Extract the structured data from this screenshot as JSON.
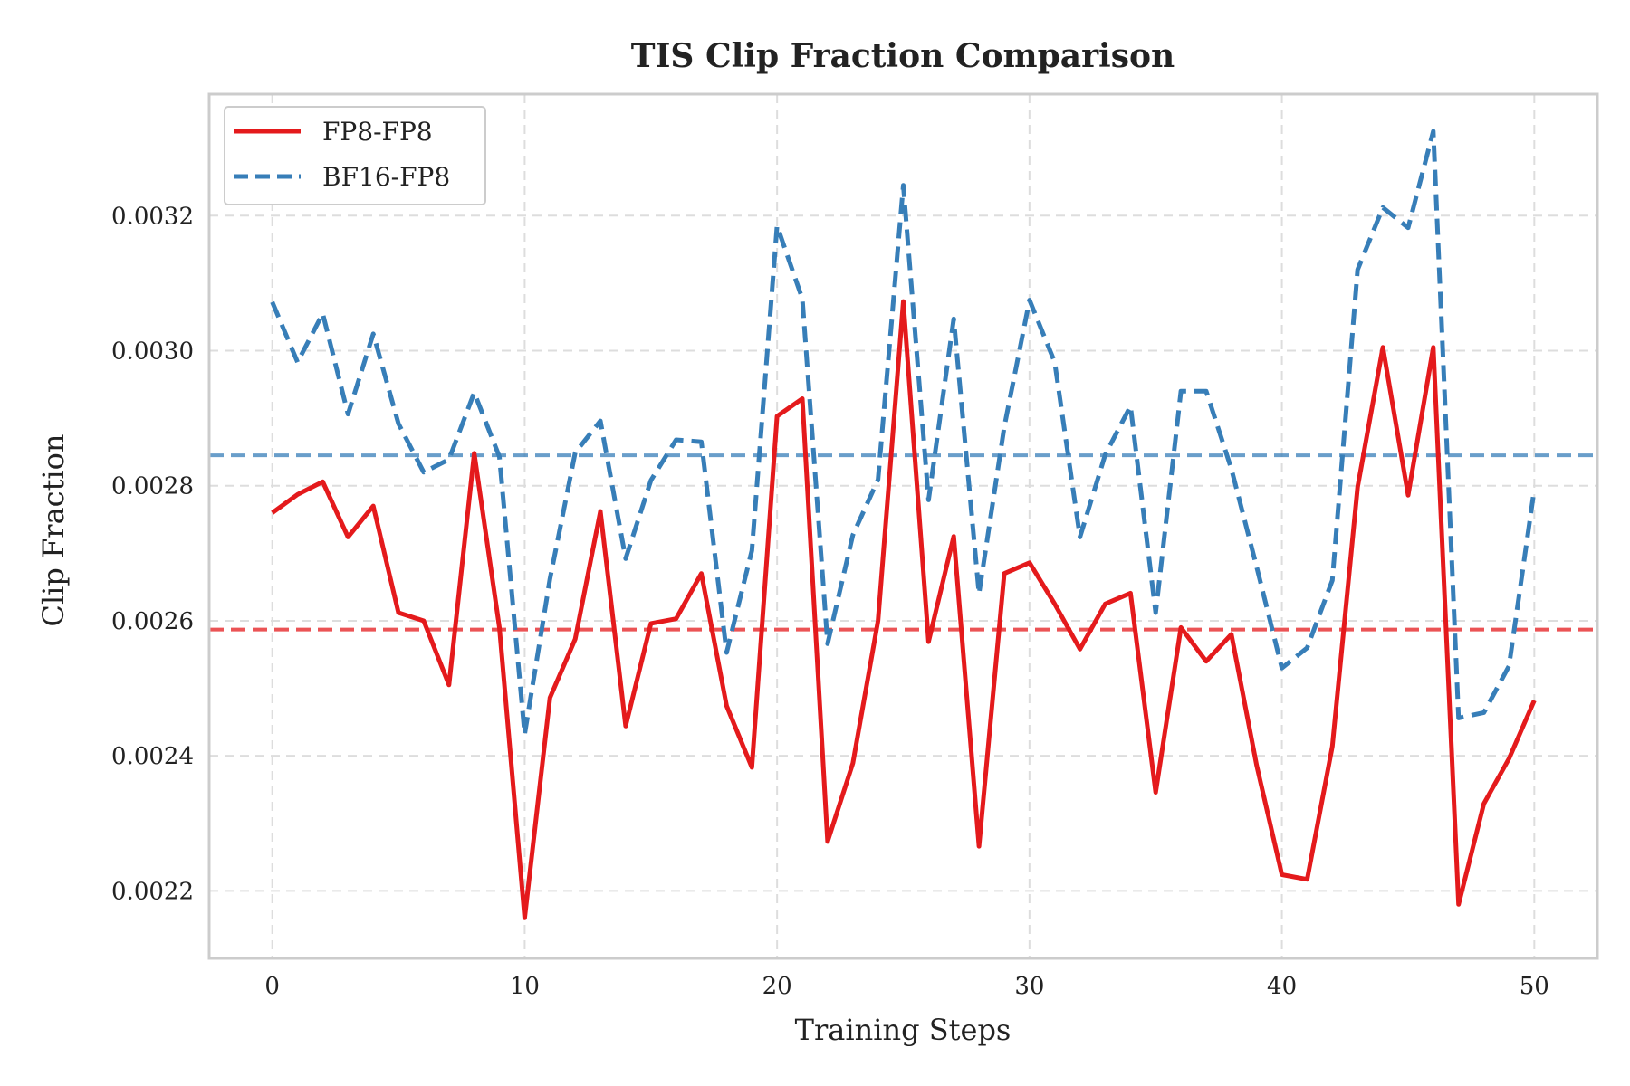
{
  "chart_data": {
    "type": "line",
    "title": "TIS Clip Fraction Comparison",
    "xlabel": "Training Steps",
    "ylabel": "Clip Fraction",
    "xlim": [
      -2.5,
      52.5
    ],
    "ylim": [
      0.0021,
      0.00338
    ],
    "xticks": [
      0,
      10,
      20,
      30,
      40,
      50
    ],
    "xtick_labels": [
      "0",
      "10",
      "20",
      "30",
      "40",
      "50"
    ],
    "yticks": [
      0.0022,
      0.0024,
      0.0026,
      0.0028,
      0.003,
      0.0032
    ],
    "ytick_labels": [
      "0.0022",
      "0.0024",
      "0.0026",
      "0.0028",
      "0.0030",
      "0.0032"
    ],
    "grid": true,
    "legend_position": "top-left",
    "x": [
      0,
      1,
      2,
      3,
      4,
      5,
      6,
      7,
      8,
      9,
      10,
      11,
      12,
      13,
      14,
      15,
      16,
      17,
      18,
      19,
      20,
      21,
      22,
      23,
      24,
      25,
      26,
      27,
      28,
      29,
      30,
      31,
      32,
      33,
      34,
      35,
      36,
      37,
      38,
      39,
      40,
      41,
      42,
      43,
      44,
      45,
      46,
      47,
      48,
      49,
      50
    ],
    "series": [
      {
        "name": "FP8-FP8",
        "color": "#e41a1c",
        "style": "solid",
        "values": [
          0.00276,
          0.002787,
          0.002806,
          0.002724,
          0.00277,
          0.002612,
          0.0026,
          0.002505,
          0.002848,
          0.00259,
          0.00216,
          0.002486,
          0.002573,
          0.002762,
          0.002444,
          0.002596,
          0.002603,
          0.00267,
          0.002474,
          0.002383,
          0.002903,
          0.002929,
          0.002273,
          0.002389,
          0.0026,
          0.003073,
          0.002569,
          0.002725,
          0.002266,
          0.00267,
          0.002686,
          0.002625,
          0.002558,
          0.002625,
          0.002641,
          0.002346,
          0.00259,
          0.00254,
          0.00258,
          0.002386,
          0.002224,
          0.002217,
          0.002414,
          0.002798,
          0.003005,
          0.002786,
          0.003005,
          0.00218,
          0.002329,
          0.002396,
          0.002482
        ],
        "mean": 0.002587
      },
      {
        "name": "BF16-FP8",
        "color": "#377eb8",
        "style": "dashed",
        "values": [
          0.003072,
          0.002983,
          0.003055,
          0.002906,
          0.003025,
          0.002892,
          0.00282,
          0.002839,
          0.002938,
          0.002843,
          0.002432,
          0.002662,
          0.002849,
          0.002896,
          0.002692,
          0.002808,
          0.002868,
          0.002865,
          0.002553,
          0.002704,
          0.003185,
          0.003077,
          0.002566,
          0.002727,
          0.002809,
          0.003245,
          0.002779,
          0.003047,
          0.00264,
          0.002887,
          0.003075,
          0.002983,
          0.002724,
          0.002846,
          0.002918,
          0.002612,
          0.00294,
          0.00294,
          0.002825,
          0.00268,
          0.00253,
          0.00256,
          0.00266,
          0.00312,
          0.003212,
          0.003182,
          0.003325,
          0.002456,
          0.002464,
          0.002533,
          0.002795
        ],
        "mean": 0.002845
      }
    ]
  }
}
